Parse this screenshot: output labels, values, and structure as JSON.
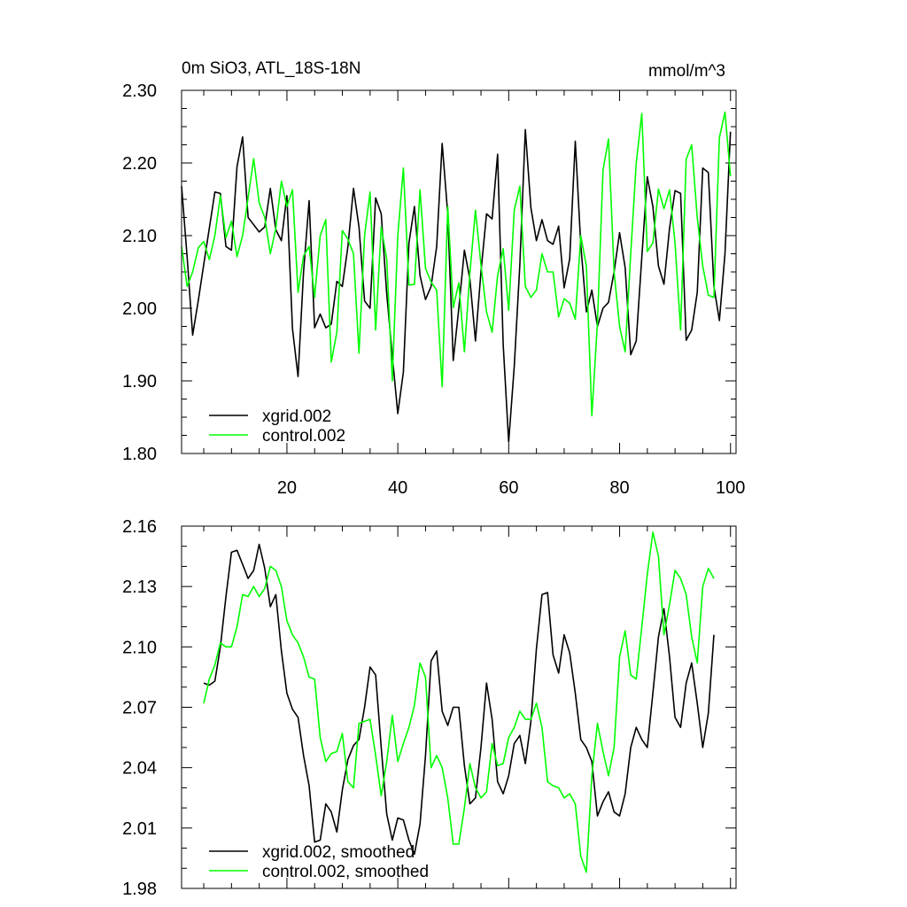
{
  "chart_data": [
    {
      "type": "line",
      "title": "0m SiO3, ATL_18S-18N",
      "units": "mmol/m^3",
      "xlim": [
        1,
        101
      ],
      "ylim": [
        1.8,
        2.3
      ],
      "x_tick_labels": [
        "20",
        "40",
        "60",
        "80",
        "100"
      ],
      "y_tick_labels": [
        "1.80",
        "1.90",
        "2.00",
        "2.10",
        "2.20",
        "2.30"
      ],
      "legend_placement": "bottom-left",
      "grid": false,
      "x": [
        1,
        2,
        3,
        4,
        5,
        6,
        7,
        8,
        9,
        10,
        11,
        12,
        13,
        14,
        15,
        16,
        17,
        18,
        19,
        20,
        21,
        22,
        23,
        24,
        25,
        26,
        27,
        28,
        29,
        30,
        31,
        32,
        33,
        34,
        35,
        36,
        37,
        38,
        39,
        40,
        41,
        42,
        43,
        44,
        45,
        46,
        47,
        48,
        49,
        50,
        51,
        52,
        53,
        54,
        55,
        56,
        57,
        58,
        59,
        60,
        61,
        62,
        63,
        64,
        65,
        66,
        67,
        68,
        69,
        70,
        71,
        72,
        73,
        74,
        75,
        76,
        77,
        78,
        79,
        80,
        81,
        82,
        83,
        84,
        85,
        86,
        87,
        88,
        89,
        90,
        91,
        92,
        93,
        94,
        95,
        96,
        97,
        98,
        99,
        100
      ],
      "series": [
        {
          "name": "xgrid.002",
          "color": "#000000",
          "values": [
            2.168,
            2.07,
            1.963,
            2.01,
            2.06,
            2.11,
            2.16,
            2.158,
            2.085,
            2.08,
            2.195,
            2.236,
            2.125,
            2.115,
            2.105,
            2.112,
            2.165,
            2.108,
            2.093,
            2.155,
            1.972,
            1.906,
            2.05,
            2.148,
            1.973,
            1.992,
            1.973,
            1.978,
            2.037,
            2.03,
            2.085,
            2.165,
            2.112,
            2.01,
            2.0,
            2.152,
            2.13,
            2.02,
            1.935,
            1.855,
            1.912,
            2.09,
            2.14,
            2.045,
            2.012,
            2.03,
            2.085,
            2.227,
            2.13,
            1.928,
            2.0,
            2.08,
            2.04,
            1.955,
            2.05,
            2.13,
            2.123,
            2.212,
            1.95,
            1.816,
            1.92,
            2.06,
            2.246,
            2.138,
            2.093,
            2.122,
            2.093,
            2.088,
            2.113,
            2.028,
            2.068,
            2.23,
            2.087,
            1.995,
            2.025,
            1.975,
            2.0,
            2.008,
            2.05,
            2.104,
            2.056,
            1.936,
            1.955,
            2.07,
            2.181,
            2.14,
            2.058,
            2.033,
            2.11,
            2.162,
            2.158,
            1.956,
            1.97,
            2.022,
            2.193,
            2.187,
            2.03,
            1.983,
            2.075,
            2.243
          ]
        },
        {
          "name": "control.002",
          "color": "#00ff00",
          "values": [
            2.085,
            2.03,
            2.05,
            2.083,
            2.092,
            2.067,
            2.1,
            2.155,
            2.097,
            2.12,
            2.071,
            2.1,
            2.152,
            2.206,
            2.145,
            2.125,
            2.075,
            2.11,
            2.175,
            2.14,
            2.163,
            2.022,
            2.072,
            2.085,
            2.015,
            2.1,
            2.122,
            1.926,
            1.967,
            2.107,
            2.095,
            2.075,
            1.938,
            2.1,
            2.16,
            1.97,
            2.112,
            2.068,
            1.9,
            2.1,
            2.193,
            2.032,
            2.033,
            2.163,
            2.055,
            2.036,
            2.025,
            1.892,
            2.14,
            2.001,
            2.035,
            1.94,
            2.048,
            2.135,
            2.06,
            1.995,
            1.967,
            2.045,
            2.082,
            1.997,
            2.135,
            2.168,
            2.03,
            2.015,
            2.025,
            2.075,
            2.05,
            2.05,
            1.988,
            2.013,
            2.007,
            1.985,
            2.1,
            2.058,
            1.852,
            1.98,
            2.19,
            2.233,
            2.05,
            1.975,
            1.94,
            2.075,
            2.2,
            2.268,
            2.078,
            2.09,
            2.164,
            2.137,
            2.163,
            2.09,
            1.97,
            2.205,
            2.225,
            2.125,
            2.058,
            2.018,
            2.015,
            2.235,
            2.27,
            2.182
          ]
        }
      ]
    },
    {
      "type": "line",
      "xlim": [
        1,
        101
      ],
      "ylim": [
        1.98,
        2.16
      ],
      "y_tick_labels": [
        "1.98",
        "2.01",
        "2.04",
        "2.07",
        "2.10",
        "2.13",
        "2.16"
      ],
      "legend_placement": "bottom-left",
      "grid": false,
      "x": [
        5,
        6,
        7,
        8,
        9,
        10,
        11,
        12,
        13,
        14,
        15,
        16,
        17,
        18,
        19,
        20,
        21,
        22,
        23,
        24,
        25,
        26,
        27,
        28,
        29,
        30,
        31,
        32,
        33,
        34,
        35,
        36,
        37,
        38,
        39,
        40,
        41,
        42,
        43,
        44,
        45,
        46,
        47,
        48,
        49,
        50,
        51,
        52,
        53,
        54,
        55,
        56,
        57,
        58,
        59,
        60,
        61,
        62,
        63,
        64,
        65,
        66,
        67,
        68,
        69,
        70,
        71,
        72,
        73,
        74,
        75,
        76,
        77,
        78,
        79,
        80,
        81,
        82,
        83,
        84,
        85,
        86,
        87,
        88,
        89,
        90,
        91,
        92,
        93,
        94,
        95,
        96,
        97
      ],
      "series": [
        {
          "name": "xgrid.002, smoothed",
          "color": "#000000",
          "values": [
            2.082,
            2.081,
            2.083,
            2.1,
            2.125,
            2.147,
            2.148,
            2.141,
            2.134,
            2.138,
            2.151,
            2.139,
            2.12,
            2.126,
            2.098,
            2.077,
            2.069,
            2.065,
            2.046,
            2.031,
            2.003,
            2.004,
            2.022,
            2.018,
            2.008,
            2.029,
            2.044,
            2.051,
            2.054,
            2.07,
            2.09,
            2.086,
            2.05,
            2.017,
            2.004,
            2.015,
            2.014,
            2.004,
            1.997,
            2.012,
            2.046,
            2.093,
            2.098,
            2.068,
            2.061,
            2.07,
            2.07,
            2.041,
            2.022,
            2.025,
            2.05,
            2.082,
            2.064,
            2.033,
            2.027,
            2.036,
            2.052,
            2.056,
            2.042,
            2.063,
            2.099,
            2.126,
            2.127,
            2.096,
            2.087,
            2.106,
            2.097,
            2.077,
            2.054,
            2.05,
            2.043,
            2.016,
            2.023,
            2.028,
            2.018,
            2.016,
            2.027,
            2.05,
            2.06,
            2.054,
            2.05,
            2.077,
            2.105,
            2.119,
            2.095,
            2.065,
            2.06,
            2.082,
            2.092,
            2.072,
            2.05,
            2.067,
            2.106
          ]
        },
        {
          "name": "control.002, smoothed",
          "color": "#00ff00",
          "values": [
            2.072,
            2.084,
            2.091,
            2.102,
            2.1,
            2.1,
            2.11,
            2.126,
            2.125,
            2.13,
            2.125,
            2.129,
            2.14,
            2.138,
            2.13,
            2.113,
            2.106,
            2.102,
            2.095,
            2.085,
            2.084,
            2.055,
            2.043,
            2.047,
            2.048,
            2.057,
            2.033,
            2.03,
            2.062,
            2.063,
            2.064,
            2.046,
            2.026,
            2.043,
            2.066,
            2.043,
            2.052,
            2.06,
            2.071,
            2.092,
            2.085,
            2.04,
            2.046,
            2.04,
            2.025,
            2.002,
            2.002,
            2.02,
            2.042,
            2.03,
            2.025,
            2.028,
            2.052,
            2.041,
            2.042,
            2.055,
            2.06,
            2.068,
            2.064,
            2.064,
            2.072,
            2.06,
            2.033,
            2.031,
            2.03,
            2.025,
            2.027,
            2.022,
            1.996,
            1.988,
            2.036,
            2.062,
            2.048,
            2.036,
            2.05,
            2.095,
            2.108,
            2.086,
            2.084,
            2.11,
            2.136,
            2.157,
            2.145,
            2.106,
            2.121,
            2.138,
            2.134,
            2.126,
            2.105,
            2.092,
            2.13,
            2.139,
            2.134
          ]
        }
      ]
    }
  ]
}
